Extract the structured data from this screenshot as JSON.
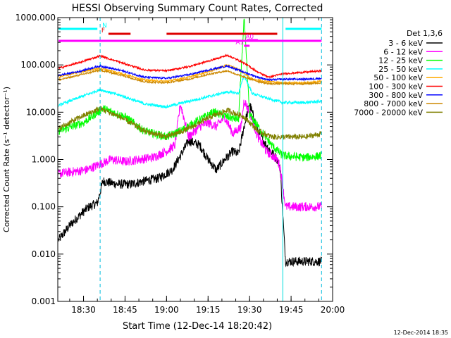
{
  "chart_data": {
    "type": "line",
    "title": "HESSI Observing Summary Count Rates, Corrected",
    "xlabel": "Start Time (12-Dec-14 18:20:42)",
    "ylabel": "Corrected Count Rate (s⁻¹ detector⁻¹)",
    "y_scale": "log",
    "ylim": [
      0.001,
      1000
    ],
    "xlim": [
      "18:20:42",
      "20:00:00"
    ],
    "y_tick_labels": [
      "1000.000",
      "100.000",
      "10.000",
      "1.000",
      "0.100",
      "0.010",
      "0.001"
    ],
    "y_tick_values": [
      1000,
      100,
      10,
      1,
      0.1,
      0.01,
      0.001
    ],
    "x_tick_labels": [
      "18:30",
      "18:45",
      "19:00",
      "19:15",
      "19:30",
      "19:45",
      "20:00"
    ],
    "legend_title": "Det 1,3,6",
    "legend_position": "right",
    "series": [
      {
        "name": "3 - 6 keV",
        "color": "#000000",
        "x": [
          "18:21",
          "18:25",
          "18:29",
          "18:32",
          "18:35",
          "18:37",
          "18:42",
          "18:47",
          "18:52",
          "18:57",
          "19:02",
          "19:05",
          "19:08",
          "19:12",
          "19:15",
          "19:18",
          "19:21",
          "19:24",
          "19:26",
          "19:28",
          "19:30",
          "19:33",
          "19:36",
          "19:40",
          "19:41",
          "19:43",
          "19:48",
          "19:53",
          "19:56"
        ],
        "y": [
          0.02,
          0.04,
          0.07,
          0.1,
          0.12,
          0.35,
          0.3,
          0.3,
          0.35,
          0.4,
          0.6,
          1.2,
          2.5,
          2.0,
          1.0,
          0.6,
          1.0,
          1.5,
          1.3,
          5.0,
          15,
          4.0,
          2.0,
          1.0,
          0.7,
          0.007,
          0.007,
          0.007,
          0.007
        ]
      },
      {
        "name": "6 - 12 keV",
        "color": "#ff00ff",
        "x": [
          "18:21",
          "18:26",
          "18:31",
          "18:36",
          "18:40",
          "18:45",
          "18:50",
          "18:55",
          "19:00",
          "19:03",
          "19:05",
          "19:08",
          "19:12",
          "19:15",
          "19:18",
          "19:21",
          "19:24",
          "19:27",
          "19:28",
          "19:30",
          "19:33",
          "19:36",
          "19:40",
          "19:41",
          "19:43",
          "19:48",
          "19:53",
          "19:56"
        ],
        "y": [
          0.5,
          0.55,
          0.6,
          0.8,
          1.0,
          0.9,
          1.0,
          1.1,
          1.5,
          2.0,
          15,
          3.0,
          5.0,
          6.0,
          5.0,
          8.0,
          3.5,
          5.0,
          18,
          10,
          3.0,
          1.5,
          1.0,
          0.7,
          0.1,
          0.1,
          0.1,
          0.1
        ]
      },
      {
        "name": "12 - 25 keV",
        "color": "#00ff00",
        "x": [
          "18:21",
          "18:30",
          "18:37",
          "18:45",
          "18:52",
          "19:00",
          "19:05",
          "19:10",
          "19:17",
          "19:22",
          "19:26",
          "19:28",
          "19:30",
          "19:33",
          "19:38",
          "19:42",
          "19:50",
          "19:56"
        ],
        "y": [
          4.0,
          6.0,
          12,
          8.0,
          4.0,
          3.0,
          4.0,
          6.0,
          10,
          8.0,
          7.0,
          1000,
          9.0,
          5.0,
          2.0,
          1.2,
          1.1,
          1.2
        ]
      },
      {
        "name": "25 - 50 keV",
        "color": "#00ffff",
        "x": [
          "18:21",
          "18:28",
          "18:36",
          "18:44",
          "18:52",
          "19:00",
          "19:08",
          "19:16",
          "19:22",
          "19:26",
          "19:28",
          "19:31",
          "19:36",
          "19:42",
          "19:50",
          "19:56"
        ],
        "y": [
          14,
          20,
          30,
          22,
          15,
          13,
          17,
          22,
          27,
          25,
          60,
          25,
          20,
          16,
          16,
          17
        ]
      },
      {
        "name": "50 - 100 keV",
        "color": "#ffaa00",
        "x": [
          "18:21",
          "18:28",
          "18:36",
          "18:44",
          "18:52",
          "19:00",
          "19:08",
          "19:16",
          "19:22",
          "19:26",
          "19:31",
          "19:36",
          "19:42",
          "19:50",
          "19:56"
        ],
        "y": [
          55,
          70,
          85,
          65,
          48,
          45,
          55,
          75,
          100,
          80,
          50,
          45,
          42,
          42,
          45
        ]
      },
      {
        "name": "100 - 300 keV",
        "color": "#ff0000",
        "x": [
          "18:21",
          "18:28",
          "18:36",
          "18:44",
          "18:52",
          "19:00",
          "19:08",
          "19:16",
          "19:22",
          "19:28",
          "19:33",
          "19:37",
          "19:42",
          "19:50",
          "19:56"
        ],
        "y": [
          85,
          110,
          155,
          110,
          78,
          75,
          92,
          125,
          160,
          110,
          70,
          55,
          65,
          70,
          75
        ]
      },
      {
        "name": "300 - 800 keV",
        "color": "#0000ff",
        "x": [
          "18:21",
          "18:28",
          "18:36",
          "18:44",
          "18:52",
          "19:00",
          "19:08",
          "19:16",
          "19:22",
          "19:28",
          "19:33",
          "19:37",
          "19:42",
          "19:50",
          "19:56"
        ],
        "y": [
          60,
          72,
          95,
          75,
          55,
          52,
          62,
          80,
          95,
          70,
          55,
          48,
          50,
          50,
          52
        ]
      },
      {
        "name": "800 - 7000 keV",
        "color": "#cc8800",
        "x": [
          "18:21",
          "18:28",
          "18:36",
          "18:44",
          "18:52",
          "19:00",
          "19:08",
          "19:16",
          "19:22",
          "19:28",
          "19:33",
          "19:37",
          "19:42",
          "19:50",
          "19:56"
        ],
        "y": [
          48,
          60,
          78,
          60,
          44,
          42,
          50,
          65,
          75,
          55,
          45,
          40,
          40,
          40,
          42
        ]
      },
      {
        "name": "7000 - 20000 keV",
        "color": "#808000",
        "x": [
          "18:21",
          "18:28",
          "18:36",
          "18:44",
          "18:52",
          "19:00",
          "19:08",
          "19:16",
          "19:22",
          "19:28",
          "19:33",
          "19:38",
          "19:42",
          "19:50",
          "19:56"
        ],
        "y": [
          4.5,
          7.5,
          12,
          7.5,
          4.0,
          3.0,
          4.5,
          8.0,
          11,
          8.0,
          4.0,
          3.0,
          3.0,
          3.0,
          3.5
        ]
      }
    ],
    "attenuator_bars": [
      {
        "label": "N",
        "color": "#00ffff",
        "segments": [
          [
            "18:21",
            "18:35"
          ],
          [
            "19:43",
            "19:56"
          ]
        ]
      },
      {
        "label": "F",
        "color": "#dd0000",
        "segments": [
          [
            "18:39",
            "18:47"
          ],
          [
            "19:00",
            "19:40"
          ]
        ]
      },
      {
        "label": "",
        "color": "#ff00ff",
        "segments": [
          [
            "18:21",
            "19:56"
          ]
        ]
      },
      {
        "label": "A1",
        "color": "#ff00ff",
        "segments": [
          [
            "19:28",
            "19:30"
          ]
        ]
      },
      {
        "label": "A0",
        "color": "#ff00ff",
        "segments": [
          [
            "19:29",
            "19:33"
          ]
        ]
      }
    ],
    "vertical_lines": [
      {
        "x": "18:36",
        "color": "#00bbdd",
        "style": "dashed"
      },
      {
        "x": "19:42",
        "color": "#00dddd",
        "style": "solid"
      },
      {
        "x": "19:56",
        "color": "#00bbdd",
        "style": "dashed"
      }
    ]
  },
  "footer_timestamp": "12-Dec-2014 18:35"
}
